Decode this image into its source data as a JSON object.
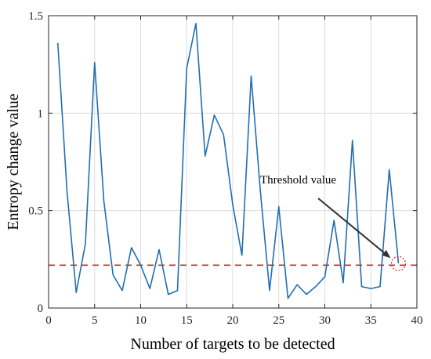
{
  "chart_data": {
    "type": "line",
    "title": "",
    "xlabel": "Number of targets to be detected",
    "ylabel": "Entropy change value",
    "xlim": [
      0,
      40
    ],
    "ylim": [
      0,
      1.5
    ],
    "xticks": [
      0,
      5,
      10,
      15,
      20,
      25,
      30,
      35,
      40
    ],
    "yticks": [
      0,
      0.5,
      1,
      1.5
    ],
    "xtick_labels": [
      "0",
      "5",
      "10",
      "15",
      "20",
      "25",
      "30",
      "35",
      "40"
    ],
    "ytick_labels": [
      "0",
      "0.5",
      "1",
      "1.5"
    ],
    "grid": true,
    "series": [
      {
        "color": "#1f6fb2",
        "x": [
          1,
          2,
          3,
          4,
          5,
          6,
          7,
          8,
          9,
          10,
          11,
          12,
          13,
          14,
          15,
          16,
          17,
          18,
          19,
          20,
          21,
          22,
          23,
          24,
          25,
          26,
          27,
          28,
          29,
          30,
          31,
          32,
          33,
          34,
          35,
          36,
          37,
          38
        ],
        "values": [
          1.36,
          0.6,
          0.08,
          0.33,
          1.26,
          0.55,
          0.17,
          0.09,
          0.31,
          0.22,
          0.1,
          0.3,
          0.07,
          0.09,
          1.23,
          1.46,
          0.78,
          0.99,
          0.89,
          0.53,
          0.27,
          1.19,
          0.6,
          0.09,
          0.52,
          0.05,
          0.12,
          0.07,
          0.11,
          0.16,
          0.45,
          0.13,
          0.86,
          0.11,
          0.1,
          0.11,
          0.71,
          0.23
        ]
      }
    ],
    "threshold": {
      "value": 0.22,
      "color": "#d62728",
      "style": "dashed"
    },
    "annotation": {
      "text": "Threshold value",
      "target_x": 38,
      "target_y": 0.22
    }
  }
}
